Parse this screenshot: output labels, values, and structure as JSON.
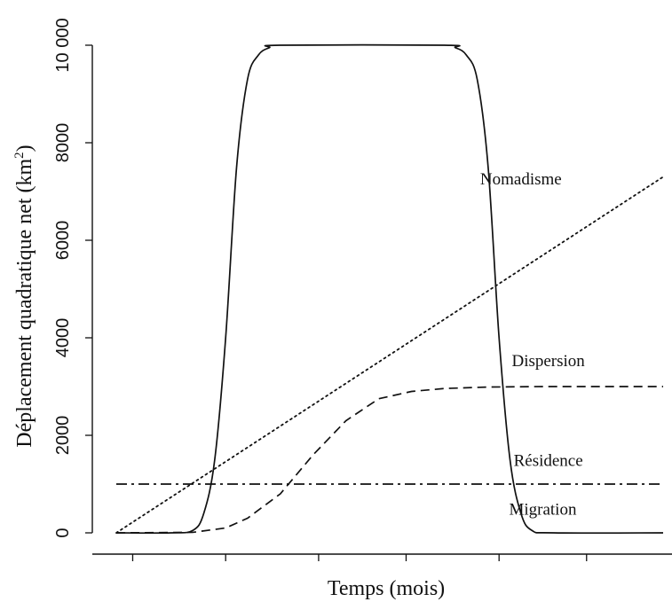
{
  "chart_data": {
    "type": "line",
    "title": "",
    "xlabel": "Temps (mois)",
    "ylabel_main": "Déplacement quadratique net (km",
    "ylabel_sup": "2",
    "ylabel_close": ")",
    "ylim": [
      0,
      10000
    ],
    "xlim": [
      0,
      100
    ],
    "y_ticks": [
      0,
      2000,
      4000,
      6000,
      8000,
      10000
    ],
    "y_tick_labels": [
      "0",
      "2000",
      "4000",
      "6000",
      "8000",
      "10 000"
    ],
    "x_ticks": [
      3,
      20,
      37,
      53,
      70,
      86
    ],
    "grid": false,
    "series": [
      {
        "name": "Migration",
        "style": "solid",
        "points": [
          [
            0,
            0
          ],
          [
            10,
            0
          ],
          [
            14,
            50
          ],
          [
            16,
            400
          ],
          [
            18,
            1500
          ],
          [
            20,
            4000
          ],
          [
            22,
            7500
          ],
          [
            24,
            9300
          ],
          [
            26,
            9800
          ],
          [
            28,
            9950
          ],
          [
            30,
            10000
          ],
          [
            60,
            10000
          ],
          [
            62,
            9950
          ],
          [
            64,
            9800
          ],
          [
            66,
            9300
          ],
          [
            68,
            7500
          ],
          [
            70,
            4000
          ],
          [
            72,
            1500
          ],
          [
            74,
            400
          ],
          [
            76,
            50
          ],
          [
            80,
            0
          ],
          [
            100,
            0
          ]
        ]
      },
      {
        "name": "Nomadisme",
        "style": "dotted",
        "points": [
          [
            0,
            0
          ],
          [
            100,
            7300
          ]
        ]
      },
      {
        "name": "Dispersion",
        "style": "dashed",
        "points": [
          [
            0,
            0
          ],
          [
            14,
            10
          ],
          [
            20,
            100
          ],
          [
            24,
            300
          ],
          [
            30,
            800
          ],
          [
            36,
            1600
          ],
          [
            42,
            2300
          ],
          [
            48,
            2750
          ],
          [
            54,
            2900
          ],
          [
            60,
            2960
          ],
          [
            68,
            2990
          ],
          [
            78,
            3000
          ],
          [
            100,
            3000
          ]
        ]
      },
      {
        "name": "Résidence",
        "style": "dashdot",
        "points": [
          [
            0,
            1000
          ],
          [
            100,
            1000
          ]
        ]
      }
    ],
    "annotations": [
      {
        "text": "Nomadisme",
        "x": 74,
        "y": 7150
      },
      {
        "text": "Dispersion",
        "x": 79,
        "y": 3420
      },
      {
        "text": "Résidence",
        "x": 79,
        "y": 1370
      },
      {
        "text": "Migration",
        "x": 78,
        "y": 370
      }
    ]
  }
}
